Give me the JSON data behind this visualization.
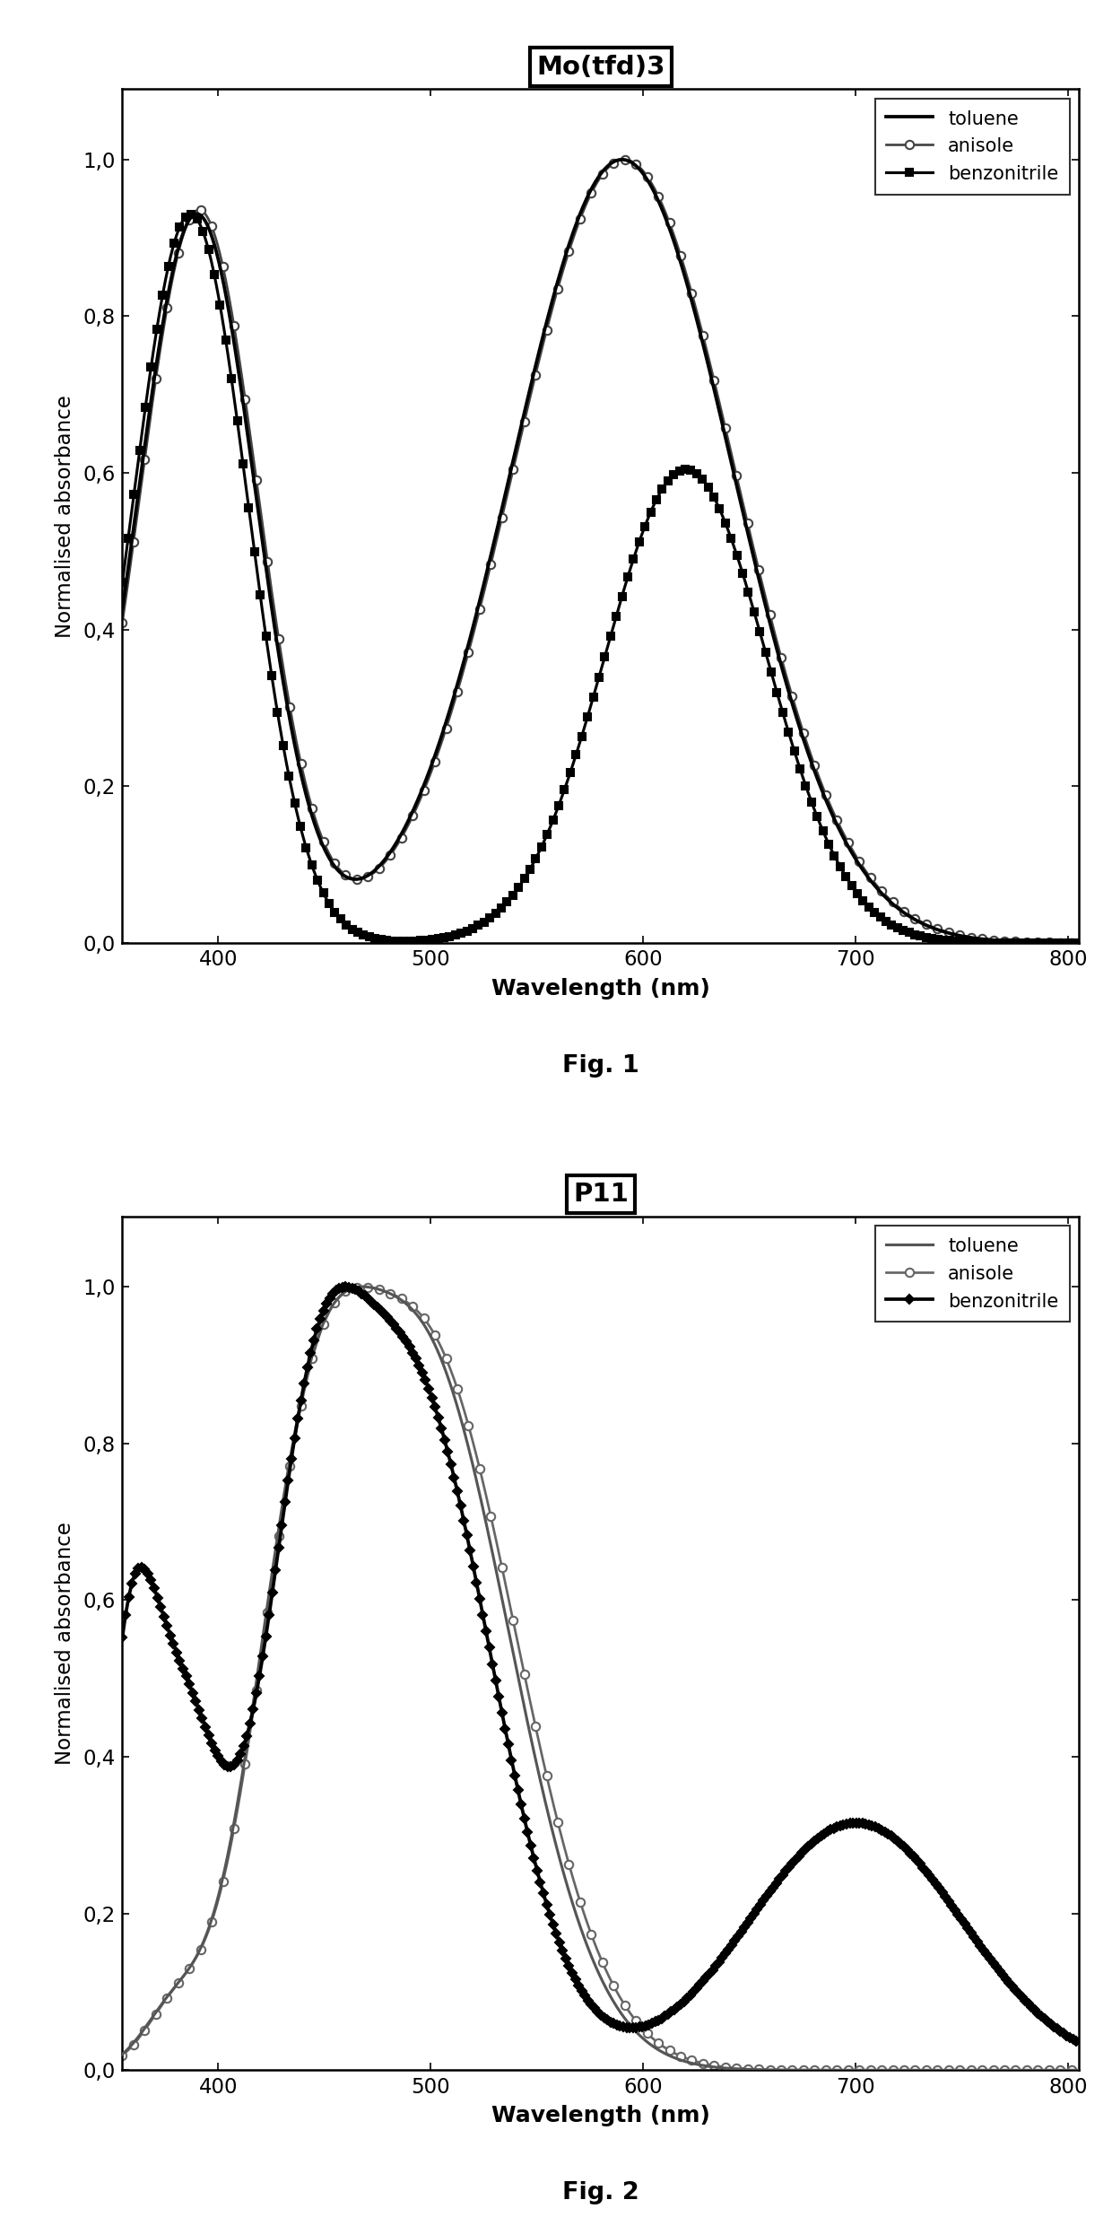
{
  "fig1": {
    "title": "Mo(tfd)3",
    "xlabel": "Wavelength (nm)",
    "ylabel": "Normalised absorbance",
    "fig_label": "Fig. 1",
    "xlim": [
      355,
      805
    ],
    "ylim": [
      0.0,
      1.09
    ],
    "yticks": [
      0.0,
      0.2,
      0.4,
      0.6,
      0.8,
      1.0
    ],
    "xticks": [
      400,
      500,
      600,
      700,
      800
    ],
    "legend": [
      "toluene",
      "anisole",
      "benzonitrile"
    ]
  },
  "fig2": {
    "title": "P11",
    "xlabel": "Wavelength (nm)",
    "ylabel": "Normalised absorbance",
    "fig_label": "Fig. 2",
    "xlim": [
      355,
      805
    ],
    "ylim": [
      0.0,
      1.09
    ],
    "yticks": [
      0.0,
      0.2,
      0.4,
      0.6,
      0.8,
      1.0
    ],
    "xticks": [
      400,
      500,
      600,
      700,
      800
    ],
    "legend": [
      "toluene",
      "anisole",
      "benzonitrile"
    ]
  }
}
